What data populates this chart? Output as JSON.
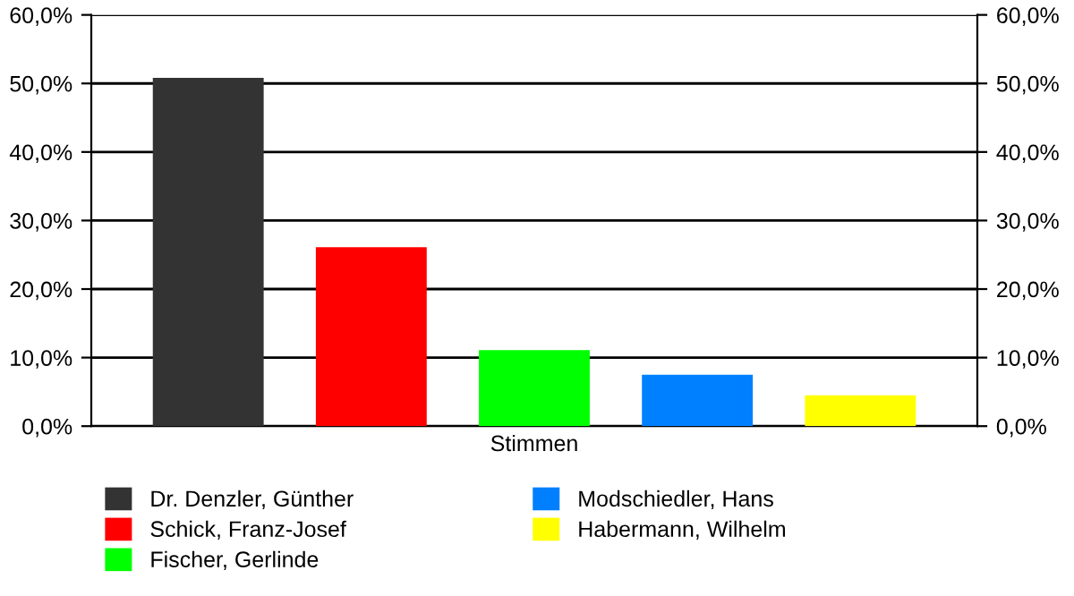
{
  "chart_data": {
    "type": "bar",
    "categories": [
      "Stimmen"
    ],
    "series": [
      {
        "name": "Dr. Denzler, Günther",
        "color": "#333333",
        "values": [
          50.8
        ]
      },
      {
        "name": "Schick, Franz-Josef",
        "color": "#ff0000",
        "values": [
          26.1
        ]
      },
      {
        "name": "Fischer, Gerlinde",
        "color": "#00ff00",
        "values": [
          11.1
        ]
      },
      {
        "name": "Modschiedler, Hans",
        "color": "#0080ff",
        "values": [
          7.5
        ]
      },
      {
        "name": "Habermann, Wilhelm",
        "color": "#ffff00",
        "values": [
          4.5
        ]
      }
    ],
    "ylim": [
      0,
      60
    ],
    "yticks": [
      {
        "value": 0,
        "label": "0,0%"
      },
      {
        "value": 10,
        "label": "10,0%"
      },
      {
        "value": 20,
        "label": "20,0%"
      },
      {
        "value": 30,
        "label": "30,0%"
      },
      {
        "value": 40,
        "label": "40,0%"
      },
      {
        "value": 50,
        "label": "50,0%"
      },
      {
        "value": 60,
        "label": "60,0%"
      }
    ],
    "grid": "y",
    "legend": "bottom"
  }
}
